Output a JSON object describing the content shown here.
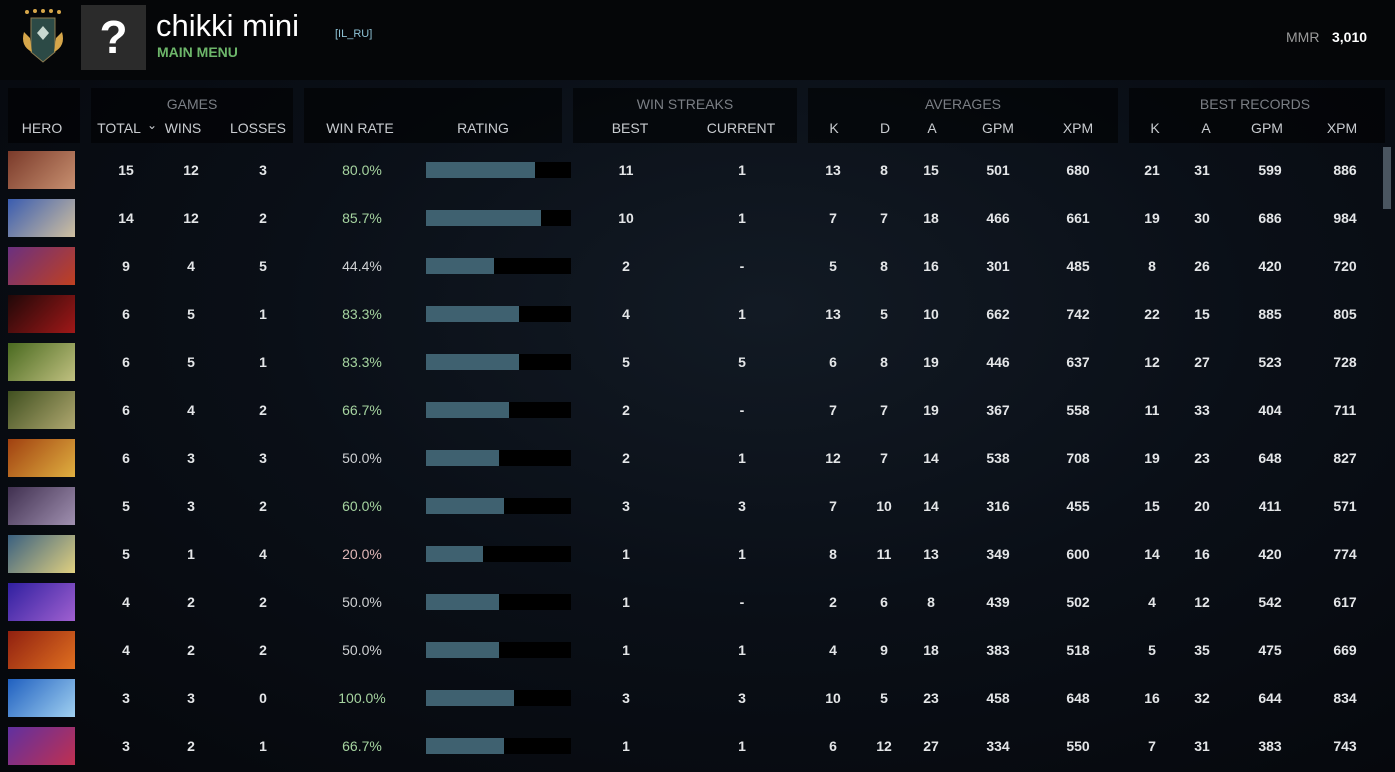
{
  "header": {
    "player_name": "chikki mini",
    "player_tag": "[IL_RU]",
    "main_menu": "MAIN MENU",
    "avatar_glyph": "?",
    "mmr_label": "MMR",
    "mmr_value": "3,010"
  },
  "groups": {
    "games": "GAMES",
    "win_streaks": "WIN STREAKS",
    "averages": "AVERAGES",
    "best_records": "BEST RECORDS"
  },
  "columns": {
    "hero": "HERO",
    "total": "TOTAL",
    "sort_icon": "⌄",
    "wins": "WINS",
    "losses": "LOSSES",
    "win_rate": "WIN RATE",
    "rating": "RATING",
    "best": "BEST",
    "current": "CURRENT",
    "k": "K",
    "d": "D",
    "a": "A",
    "gpm": "GPM",
    "xpm": "XPM",
    "best_k": "K",
    "best_a": "A",
    "best_gpm": "GPM",
    "best_xpm": "XPM"
  },
  "colors": {
    "win_rate_high": "#a6d4a0",
    "win_rate_mid": "#d0d2d4",
    "win_rate_low": "#e0b8b8",
    "rating_fill": "#3f6170",
    "accent_green": "#6db66a"
  },
  "rows": [
    {
      "portrait": [
        "#7a3a2a",
        "#c89070"
      ],
      "total": "15",
      "wins": "12",
      "losses": "3",
      "win_rate": "80.0%",
      "rating": 75,
      "best": "11",
      "current": "1",
      "k": "13",
      "d": "8",
      "a": "15",
      "gpm": "501",
      "xpm": "680",
      "best_k": "21",
      "best_a": "31",
      "best_gpm": "599",
      "best_xpm": "886"
    },
    {
      "portrait": [
        "#3a5cb0",
        "#d0c0a0"
      ],
      "total": "14",
      "wins": "12",
      "losses": "2",
      "win_rate": "85.7%",
      "rating": 79,
      "best": "10",
      "current": "1",
      "k": "7",
      "d": "7",
      "a": "18",
      "gpm": "466",
      "xpm": "661",
      "best_k": "19",
      "best_a": "30",
      "best_gpm": "686",
      "best_xpm": "984"
    },
    {
      "portrait": [
        "#6a3080",
        "#c04020"
      ],
      "total": "9",
      "wins": "4",
      "losses": "5",
      "win_rate": "44.4%",
      "rating": 47,
      "best": "2",
      "current": "-",
      "k": "5",
      "d": "8",
      "a": "16",
      "gpm": "301",
      "xpm": "485",
      "best_k": "8",
      "best_a": "26",
      "best_gpm": "420",
      "best_xpm": "720"
    },
    {
      "portrait": [
        "#200808",
        "#a01818"
      ],
      "total": "6",
      "wins": "5",
      "losses": "1",
      "win_rate": "83.3%",
      "rating": 64,
      "best": "4",
      "current": "1",
      "k": "13",
      "d": "5",
      "a": "10",
      "gpm": "662",
      "xpm": "742",
      "best_k": "22",
      "best_a": "15",
      "best_gpm": "885",
      "best_xpm": "805"
    },
    {
      "portrait": [
        "#4a6a20",
        "#c0c080"
      ],
      "total": "6",
      "wins": "5",
      "losses": "1",
      "win_rate": "83.3%",
      "rating": 64,
      "best": "5",
      "current": "5",
      "k": "6",
      "d": "8",
      "a": "19",
      "gpm": "446",
      "xpm": "637",
      "best_k": "12",
      "best_a": "27",
      "best_gpm": "523",
      "best_xpm": "728"
    },
    {
      "portrait": [
        "#405020",
        "#b0a870"
      ],
      "total": "6",
      "wins": "4",
      "losses": "2",
      "win_rate": "66.7%",
      "rating": 57,
      "best": "2",
      "current": "-",
      "k": "7",
      "d": "7",
      "a": "19",
      "gpm": "367",
      "xpm": "558",
      "best_k": "11",
      "best_a": "33",
      "best_gpm": "404",
      "best_xpm": "711"
    },
    {
      "portrait": [
        "#a04010",
        "#e0b040"
      ],
      "total": "6",
      "wins": "3",
      "losses": "3",
      "win_rate": "50.0%",
      "rating": 50,
      "best": "2",
      "current": "1",
      "k": "12",
      "d": "7",
      "a": "14",
      "gpm": "538",
      "xpm": "708",
      "best_k": "19",
      "best_a": "23",
      "best_gpm": "648",
      "best_xpm": "827"
    },
    {
      "portrait": [
        "#403050",
        "#a090b0"
      ],
      "total": "5",
      "wins": "3",
      "losses": "2",
      "win_rate": "60.0%",
      "rating": 54,
      "best": "3",
      "current": "3",
      "k": "7",
      "d": "10",
      "a": "14",
      "gpm": "316",
      "xpm": "455",
      "best_k": "15",
      "best_a": "20",
      "best_gpm": "411",
      "best_xpm": "571"
    },
    {
      "portrait": [
        "#3a6080",
        "#e0d080"
      ],
      "total": "5",
      "wins": "1",
      "losses": "4",
      "win_rate": "20.0%",
      "rating": 39,
      "best": "1",
      "current": "1",
      "k": "8",
      "d": "11",
      "a": "13",
      "gpm": "349",
      "xpm": "600",
      "best_k": "14",
      "best_a": "16",
      "best_gpm": "420",
      "best_xpm": "774"
    },
    {
      "portrait": [
        "#3020a0",
        "#a060d0"
      ],
      "total": "4",
      "wins": "2",
      "losses": "2",
      "win_rate": "50.0%",
      "rating": 50,
      "best": "1",
      "current": "-",
      "k": "2",
      "d": "6",
      "a": "8",
      "gpm": "439",
      "xpm": "502",
      "best_k": "4",
      "best_a": "12",
      "best_gpm": "542",
      "best_xpm": "617"
    },
    {
      "portrait": [
        "#902010",
        "#e07020"
      ],
      "total": "4",
      "wins": "2",
      "losses": "2",
      "win_rate": "50.0%",
      "rating": 50,
      "best": "1",
      "current": "1",
      "k": "4",
      "d": "9",
      "a": "18",
      "gpm": "383",
      "xpm": "518",
      "best_k": "5",
      "best_a": "35",
      "best_gpm": "475",
      "best_xpm": "669"
    },
    {
      "portrait": [
        "#2060c0",
        "#a0d0f0"
      ],
      "total": "3",
      "wins": "3",
      "losses": "0",
      "win_rate": "100.0%",
      "rating": 61,
      "best": "3",
      "current": "3",
      "k": "10",
      "d": "5",
      "a": "23",
      "gpm": "458",
      "xpm": "648",
      "best_k": "16",
      "best_a": "32",
      "best_gpm": "644",
      "best_xpm": "834"
    },
    {
      "portrait": [
        "#6030a0",
        "#c03050"
      ],
      "total": "3",
      "wins": "2",
      "losses": "1",
      "win_rate": "66.7%",
      "rating": 54,
      "best": "1",
      "current": "1",
      "k": "6",
      "d": "12",
      "a": "27",
      "gpm": "334",
      "xpm": "550",
      "best_k": "7",
      "best_a": "31",
      "best_gpm": "383",
      "best_xpm": "743"
    }
  ]
}
